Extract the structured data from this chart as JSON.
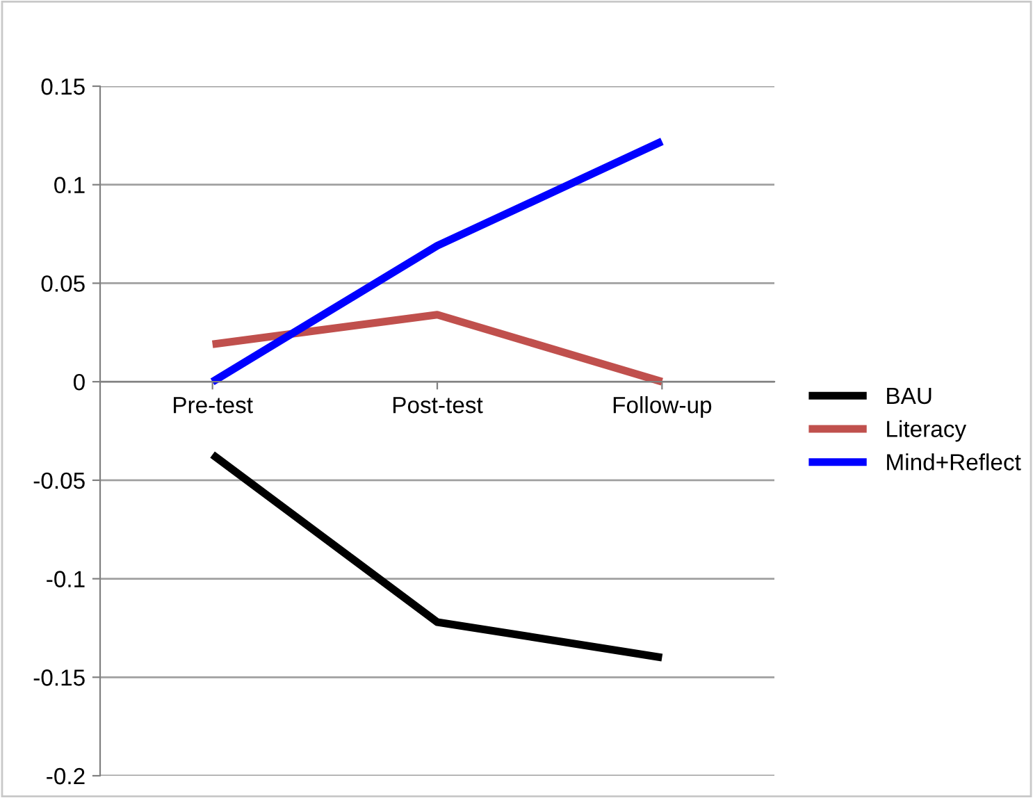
{
  "chart_data": {
    "type": "line",
    "categories": [
      "Pre-test",
      "Post-test",
      "Follow-up"
    ],
    "series": [
      {
        "name": "BAU",
        "color": "#000000",
        "values": [
          -0.037,
          -0.122,
          -0.14
        ]
      },
      {
        "name": "Literacy",
        "color": "#c0504d",
        "values": [
          0.019,
          0.034,
          0.0
        ]
      },
      {
        "name": "Mind+Reflect",
        "color": "#0000ff",
        "values": [
          0.0,
          0.069,
          0.122
        ]
      }
    ],
    "ylim": [
      -0.2,
      0.15
    ],
    "yticks": [
      -0.2,
      -0.15,
      -0.1,
      -0.05,
      0,
      0.05,
      0.1,
      0.15
    ],
    "grid": "y",
    "legend": "right",
    "marker": "none",
    "line_style": "solid"
  }
}
